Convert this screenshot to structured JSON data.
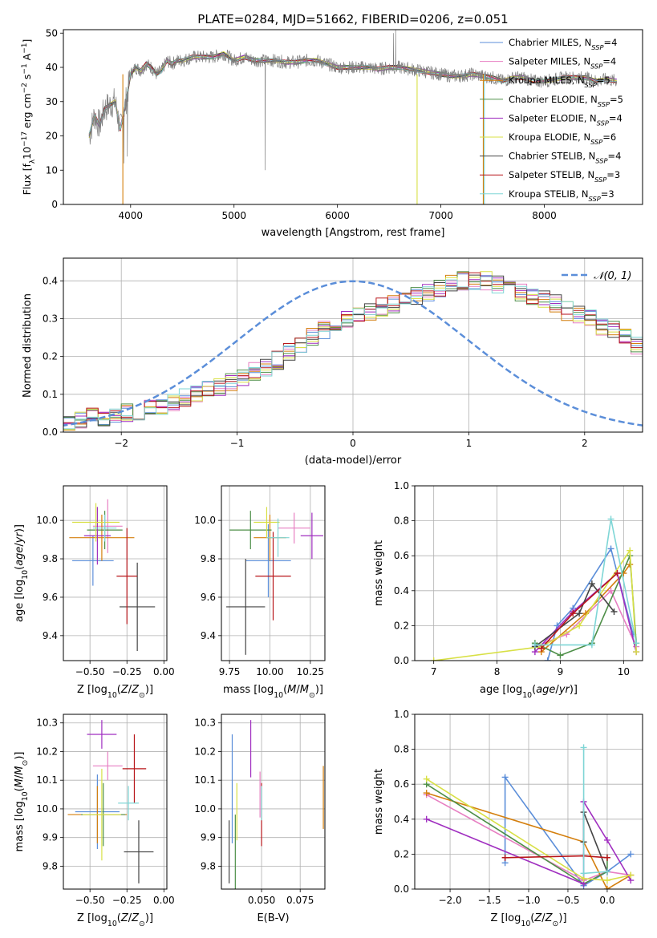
{
  "chart_data": [
    {
      "type": "line",
      "title": "PLATE=0284, MJD=51662, FIBERID=0206, z=0.051",
      "xlabel": "wavelength [Angstrom, rest frame]",
      "ylabel": "Flux [f_λ 10^-17 erg cm^-2 s^-1 A^-1]",
      "xlim": [
        3350,
        8950
      ],
      "ylim": [
        0,
        51
      ],
      "xticks": [
        "4000",
        "5000",
        "6000",
        "7000",
        "8000"
      ],
      "yticks": [
        "0",
        "10",
        "20",
        "30",
        "40",
        "50"
      ],
      "grid": false,
      "legend_position": "top-right",
      "data_series": {
        "name": "data",
        "color": "#808080"
      },
      "series": [
        {
          "name": "Chabrier MILES, N_SSP=4",
          "label": "Chabrier MILES, N",
          "sub": "SSP",
          "nssp": "=4",
          "color": "#5b8ed9"
        },
        {
          "name": "Salpeter MILES, N_SSP=4",
          "label": "Salpeter MILES, N",
          "sub": "SSP",
          "nssp": "=4",
          "color": "#e77fc2"
        },
        {
          "name": "Kroupa MILES, N_SSP=5",
          "label": "Kroupa MILES, N",
          "sub": "SSP",
          "nssp": "=5",
          "color": "#d47f0e"
        },
        {
          "name": "Chabrier ELODIE, N_SSP=5",
          "label": "Chabrier ELODIE, N",
          "sub": "SSP",
          "nssp": "=5",
          "color": "#4e8f48"
        },
        {
          "name": "Salpeter ELODIE, N_SSP=4",
          "label": "Salpeter ELODIE, N",
          "sub": "SSP",
          "nssp": "=4",
          "color": "#a02fc0"
        },
        {
          "name": "Kroupa ELODIE, N_SSP=6",
          "label": "Kroupa ELODIE, N",
          "sub": "SSP",
          "nssp": "=6",
          "color": "#d8e045"
        },
        {
          "name": "Chabrier STELIB, N_SSP=4",
          "label": "Chabrier STELIB, N",
          "sub": "SSP",
          "nssp": "=4",
          "color": "#444444"
        },
        {
          "name": "Salpeter STELIB, N_SSP=3",
          "label": "Salpeter STELIB, N",
          "sub": "SSP",
          "nssp": "=3",
          "color": "#b8161a"
        },
        {
          "name": "Kroupa STELIB, N_SSP=3",
          "label": "Kroupa STELIB, N",
          "sub": "SSP",
          "nssp": "=3",
          "color": "#7fd6d6"
        }
      ],
      "spectrum": {
        "x": [
          3600,
          3650,
          3700,
          3750,
          3800,
          3850,
          3900,
          3950,
          4000,
          4050,
          4100,
          4150,
          4200,
          4250,
          4300,
          4350,
          4400,
          4450,
          4500,
          4600,
          4700,
          4800,
          4900,
          5000,
          5100,
          5200,
          5300,
          5400,
          5500,
          5600,
          5700,
          5800,
          5900,
          6000,
          6100,
          6200,
          6300,
          6400,
          6500,
          6600,
          6700,
          6800,
          6900,
          7000,
          7100,
          7200,
          7300,
          7400,
          7500,
          7600,
          7700,
          7800,
          7900,
          8000,
          8100,
          8200,
          8300,
          8400,
          8500,
          8600,
          8700
        ],
        "y": [
          20,
          26,
          23,
          28,
          29,
          30,
          22,
          29,
          38,
          40,
          39,
          41,
          40,
          38,
          39,
          42,
          41,
          42,
          42,
          43,
          43,
          43,
          44,
          42,
          43,
          42,
          42,
          42,
          41.5,
          41.5,
          42,
          42,
          41,
          40,
          40,
          40,
          40,
          39.5,
          40,
          40,
          39.5,
          39,
          38.5,
          38,
          37.5,
          37.5,
          38,
          37.5,
          37,
          36,
          37,
          37,
          36,
          36,
          36.5,
          37,
          37,
          37,
          36,
          36.5,
          36
        ]
      }
    },
    {
      "type": "histogram",
      "xlabel": "(data-model)/error",
      "ylabel": "Normed distribution",
      "xlim": [
        -2.5,
        2.5
      ],
      "ylim": [
        0,
        0.46
      ],
      "xticks": [
        "−2",
        "−1",
        "0",
        "1",
        "2"
      ],
      "yticks": [
        "0.0",
        "0.1",
        "0.2",
        "0.3",
        "0.4"
      ],
      "grid": true,
      "legend_position": "top-right",
      "legend": "𝒩(0, 1)",
      "reference_curve": "standard normal pdf, dashed",
      "bins_start": -2.5,
      "bin_width": 0.1,
      "values": [
        0.03,
        0.03,
        0.04,
        0.04,
        0.04,
        0.05,
        0.05,
        0.06,
        0.07,
        0.08,
        0.09,
        0.1,
        0.11,
        0.12,
        0.13,
        0.14,
        0.16,
        0.17,
        0.19,
        0.21,
        0.23,
        0.25,
        0.27,
        0.29,
        0.3,
        0.31,
        0.32,
        0.33,
        0.34,
        0.35,
        0.36,
        0.37,
        0.38,
        0.39,
        0.4,
        0.4,
        0.4,
        0.39,
        0.38,
        0.37,
        0.36,
        0.35,
        0.34,
        0.32,
        0.31,
        0.3,
        0.28,
        0.27,
        0.25,
        0.23,
        0.21,
        0.2,
        0.19,
        0.17,
        0.16,
        0.14,
        0.12,
        0.11,
        0.1,
        0.09,
        0.08,
        0.07,
        0.06,
        0.05,
        0.05,
        0.04,
        0.04,
        0.03,
        0.03,
        0.03
      ]
    },
    {
      "type": "scatter",
      "subtype": "errorbar",
      "xlabel": "Z [log10(Z/Z⊙)]",
      "ylabel": "age [log10(age/yr)]",
      "xlim": [
        -0.68,
        0.02
      ],
      "ylim": [
        9.27,
        10.18
      ],
      "xticks": [
        "−0.50",
        "−0.25",
        "0.00"
      ],
      "yticks": [
        "9.4",
        "9.6",
        "9.8",
        "10.0"
      ],
      "grid": true,
      "points": [
        {
          "x": -0.48,
          "y": 9.79,
          "xerr": 0.14,
          "yerr": 0.13,
          "color": "#5b8ed9"
        },
        {
          "x": -0.38,
          "y": 9.97,
          "xerr": 0.1,
          "yerr": 0.14,
          "color": "#e77fc2"
        },
        {
          "x": -0.42,
          "y": 9.91,
          "xerr": 0.22,
          "yerr": 0.12,
          "color": "#d47f0e"
        },
        {
          "x": -0.4,
          "y": 9.95,
          "xerr": 0.12,
          "yerr": 0.1,
          "color": "#4e8f48"
        },
        {
          "x": -0.45,
          "y": 9.92,
          "xerr": 0.09,
          "yerr": 0.15,
          "color": "#a02fc0"
        },
        {
          "x": -0.46,
          "y": 9.99,
          "xerr": 0.16,
          "yerr": 0.1,
          "color": "#d8e045"
        },
        {
          "x": -0.18,
          "y": 9.55,
          "xerr": 0.12,
          "yerr": 0.23,
          "color": "#444444"
        },
        {
          "x": -0.25,
          "y": 9.71,
          "xerr": 0.07,
          "yerr": 0.25,
          "color": "#b8161a"
        },
        {
          "x": -0.4,
          "y": 9.96,
          "xerr": 0.08,
          "yerr": 0.07,
          "color": "#7fd6d6"
        }
      ]
    },
    {
      "type": "scatter",
      "subtype": "errorbar",
      "xlabel": "mass [log10(M/M⊙)]",
      "ylabel": "",
      "xlim": [
        9.7,
        10.34
      ],
      "ylim": [
        9.27,
        10.18
      ],
      "xticks": [
        "9.75",
        "10.00",
        "10.25"
      ],
      "yticks": [
        "9.4",
        "9.6",
        "9.8",
        "10.0"
      ],
      "grid": true,
      "points": [
        {
          "x": 9.99,
          "y": 9.79,
          "xerr": 0.14,
          "yerr": 0.19,
          "color": "#5b8ed9"
        },
        {
          "x": 10.15,
          "y": 9.96,
          "xerr": 0.1,
          "yerr": 0.08,
          "color": "#e77fc2"
        },
        {
          "x": 10.0,
          "y": 9.91,
          "xerr": 0.1,
          "yerr": 0.12,
          "color": "#d47f0e"
        },
        {
          "x": 9.88,
          "y": 9.95,
          "xerr": 0.13,
          "yerr": 0.1,
          "color": "#4e8f48"
        },
        {
          "x": 10.26,
          "y": 9.92,
          "xerr": 0.07,
          "yerr": 0.12,
          "color": "#a02fc0"
        },
        {
          "x": 9.98,
          "y": 9.99,
          "xerr": 0.08,
          "yerr": 0.08,
          "color": "#d8e045"
        },
        {
          "x": 9.85,
          "y": 9.55,
          "xerr": 0.12,
          "yerr": 0.25,
          "color": "#444444"
        },
        {
          "x": 10.02,
          "y": 9.71,
          "xerr": 0.11,
          "yerr": 0.23,
          "color": "#b8161a"
        },
        {
          "x": 10.05,
          "y": 9.91,
          "xerr": 0.07,
          "yerr": 0.1,
          "color": "#7fd6d6"
        }
      ]
    },
    {
      "type": "line",
      "xlabel": "age [log10(age/yr)]",
      "ylabel": "mass weight",
      "xlim": [
        6.7,
        10.3
      ],
      "ylim": [
        0,
        1
      ],
      "xticks": [
        "7",
        "8",
        "9",
        "10"
      ],
      "yticks": [
        "0.0",
        "0.2",
        "0.4",
        "0.6",
        "0.8",
        "1.0"
      ],
      "grid": true,
      "series": [
        {
          "name": "Chabrier MILES",
          "color": "#5b8ed9",
          "x": [
            8.8,
            8.95,
            9.2,
            9.8,
            10.15
          ],
          "y": [
            0.0,
            0.2,
            0.3,
            0.64,
            0.15
          ]
        },
        {
          "name": "Salpeter MILES",
          "color": "#e77fc2",
          "x": [
            8.6,
            9.1,
            9.8,
            10.2
          ],
          "y": [
            0.08,
            0.15,
            0.4,
            0.08
          ]
        },
        {
          "name": "Kroupa MILES",
          "color": "#d47f0e",
          "x": [
            8.7,
            9.4,
            10.0,
            10.1
          ],
          "y": [
            0.05,
            0.27,
            0.5,
            0.55
          ]
        },
        {
          "name": "Chabrier ELODIE",
          "color": "#4e8f48",
          "x": [
            8.6,
            9.0,
            9.5,
            10.1,
            10.2
          ],
          "y": [
            0.1,
            0.03,
            0.1,
            0.6,
            0.1
          ]
        },
        {
          "name": "Salpeter ELODIE",
          "color": "#a02fc0",
          "x": [
            8.6,
            9.2,
            9.9,
            10.2
          ],
          "y": [
            0.05,
            0.28,
            0.5,
            0.05
          ]
        },
        {
          "name": "Kroupa ELODIE",
          "color": "#d8e045",
          "x": [
            7.0,
            8.7,
            9.3,
            10.1,
            10.2
          ],
          "y": [
            0.0,
            0.08,
            0.2,
            0.63,
            0.05
          ]
        },
        {
          "name": "Chabrier STELIB",
          "color": "#444444",
          "x": [
            8.6,
            9.3,
            9.5,
            9.85
          ],
          "y": [
            0.08,
            0.27,
            0.44,
            0.28
          ]
        },
        {
          "name": "Salpeter STELIB",
          "color": "#b8161a",
          "x": [
            8.7,
            9.2,
            9.9
          ],
          "y": [
            0.07,
            0.27,
            0.5
          ]
        },
        {
          "name": "Kroupa STELIB",
          "color": "#7fd6d6",
          "x": [
            8.6,
            9.5,
            9.8,
            10.2
          ],
          "y": [
            0.09,
            0.09,
            0.81,
            0.1
          ]
        }
      ]
    },
    {
      "type": "scatter",
      "subtype": "errorbar",
      "xlabel": "Z [log10(Z/Z⊙)]",
      "ylabel": "mass [log10(M/M⊙)]",
      "xlim": [
        -0.68,
        0.02
      ],
      "ylim": [
        9.72,
        10.33
      ],
      "xticks": [
        "−0.50",
        "−0.25",
        "0.00"
      ],
      "yticks": [
        "9.8",
        "9.9",
        "10.0",
        "10.1",
        "10.2",
        "10.3"
      ],
      "grid": true,
      "points": [
        {
          "x": -0.45,
          "y": 9.99,
          "xerr": 0.15,
          "yerr": 0.13,
          "color": "#5b8ed9"
        },
        {
          "x": -0.38,
          "y": 10.15,
          "xerr": 0.1,
          "yerr": 0.05,
          "color": "#e77fc2"
        },
        {
          "x": -0.45,
          "y": 9.98,
          "xerr": 0.2,
          "yerr": 0.1,
          "color": "#d47f0e"
        },
        {
          "x": -0.41,
          "y": 9.98,
          "xerr": 0.15,
          "yerr": 0.11,
          "color": "#4e8f48"
        },
        {
          "x": -0.42,
          "y": 10.26,
          "xerr": 0.1,
          "yerr": 0.05,
          "color": "#a02fc0"
        },
        {
          "x": -0.42,
          "y": 9.98,
          "xerr": 0.13,
          "yerr": 0.16,
          "color": "#d8e045"
        },
        {
          "x": -0.17,
          "y": 9.85,
          "xerr": 0.1,
          "yerr": 0.11,
          "color": "#444444"
        },
        {
          "x": -0.2,
          "y": 10.14,
          "xerr": 0.08,
          "yerr": 0.12,
          "color": "#b8161a"
        },
        {
          "x": -0.24,
          "y": 10.02,
          "xerr": 0.07,
          "yerr": 0.06,
          "color": "#7fd6d6"
        }
      ]
    },
    {
      "type": "scatter",
      "subtype": "errorbar",
      "xlabel": "E(B-V)",
      "ylabel": "",
      "xlim": [
        0.024,
        0.091
      ],
      "ylim": [
        9.72,
        10.33
      ],
      "xticks": [
        "0.050",
        "0.075"
      ],
      "yticks": [
        "9.8",
        "9.9",
        "10.0",
        "10.1",
        "10.2",
        "10.3"
      ],
      "grid": true,
      "points": [
        {
          "x": 0.031,
          "y": 10.07,
          "yerr": 0.19,
          "color": "#5b8ed9"
        },
        {
          "x": 0.049,
          "y": 10.05,
          "yerr": 0.08,
          "color": "#e77fc2"
        },
        {
          "x": 0.09,
          "y": 10.04,
          "yerr": 0.11,
          "color": "#d47f0e"
        },
        {
          "x": 0.033,
          "y": 9.85,
          "yerr": 0.13,
          "color": "#4e8f48"
        },
        {
          "x": 0.043,
          "y": 10.21,
          "yerr": 0.1,
          "color": "#a02fc0"
        },
        {
          "x": 0.034,
          "y": 9.99,
          "yerr": 0.1,
          "color": "#d8e045"
        },
        {
          "x": 0.029,
          "y": 9.85,
          "yerr": 0.11,
          "color": "#444444"
        },
        {
          "x": 0.05,
          "y": 9.98,
          "yerr": 0.11,
          "color": "#b8161a"
        },
        {
          "x": 0.05,
          "y": 10.02,
          "yerr": 0.06,
          "color": "#7fd6d6"
        }
      ]
    },
    {
      "type": "line",
      "xlabel": "Z [log10(Z/Z⊙)]",
      "ylabel": "mass weight",
      "xlim": [
        -2.45,
        0.45
      ],
      "ylim": [
        0,
        1
      ],
      "xticks": [
        "−2.0",
        "−1.5",
        "−1.0",
        "−0.5",
        "0.0"
      ],
      "yticks": [
        "0.0",
        "0.2",
        "0.4",
        "0.6",
        "0.8",
        "1.0"
      ],
      "grid": true,
      "series": [
        {
          "name": "Chabrier MILES",
          "color": "#5b8ed9",
          "x": [
            -1.3,
            -1.3,
            -0.3,
            0.0,
            0.3
          ],
          "y": [
            0.15,
            0.64,
            0.02,
            0.1,
            0.2
          ]
        },
        {
          "name": "Salpeter MILES",
          "color": "#e77fc2",
          "x": [
            -2.3,
            -0.3,
            0.0,
            0.3
          ],
          "y": [
            0.54,
            0.05,
            0.1,
            0.08
          ]
        },
        {
          "name": "Kroupa MILES",
          "color": "#d47f0e",
          "x": [
            -2.3,
            -0.3,
            0.0,
            0.3
          ],
          "y": [
            0.55,
            0.27,
            0.0,
            0.08
          ]
        },
        {
          "name": "Chabrier ELODIE",
          "color": "#4e8f48",
          "x": [
            -2.3,
            -0.3,
            0.0,
            0.0
          ],
          "y": [
            0.6,
            0.03,
            0.1,
            0.18
          ]
        },
        {
          "name": "Salpeter ELODIE",
          "color": "#a02fc0",
          "x": [
            -2.3,
            -0.3,
            -0.3,
            0.0,
            0.3
          ],
          "y": [
            0.4,
            0.03,
            0.5,
            0.28,
            0.05
          ]
        },
        {
          "name": "Kroupa ELODIE",
          "color": "#d8e045",
          "x": [
            -2.3,
            -0.3,
            0.0,
            0.3
          ],
          "y": [
            0.63,
            0.06,
            0.05,
            0.08
          ]
        },
        {
          "name": "Chabrier STELIB",
          "color": "#444444",
          "x": [
            -0.3,
            -0.3,
            0.0
          ],
          "y": [
            0.27,
            0.44,
            0.1
          ]
        },
        {
          "name": "Salpeter STELIB",
          "color": "#b8161a",
          "x": [
            -1.3,
            -0.3,
            0.0
          ],
          "y": [
            0.18,
            0.19,
            0.18
          ]
        },
        {
          "name": "Kroupa STELIB",
          "color": "#7fd6d6",
          "x": [
            -0.3,
            -0.3,
            0.0
          ],
          "y": [
            0.81,
            0.09,
            0.1
          ]
        }
      ]
    }
  ]
}
